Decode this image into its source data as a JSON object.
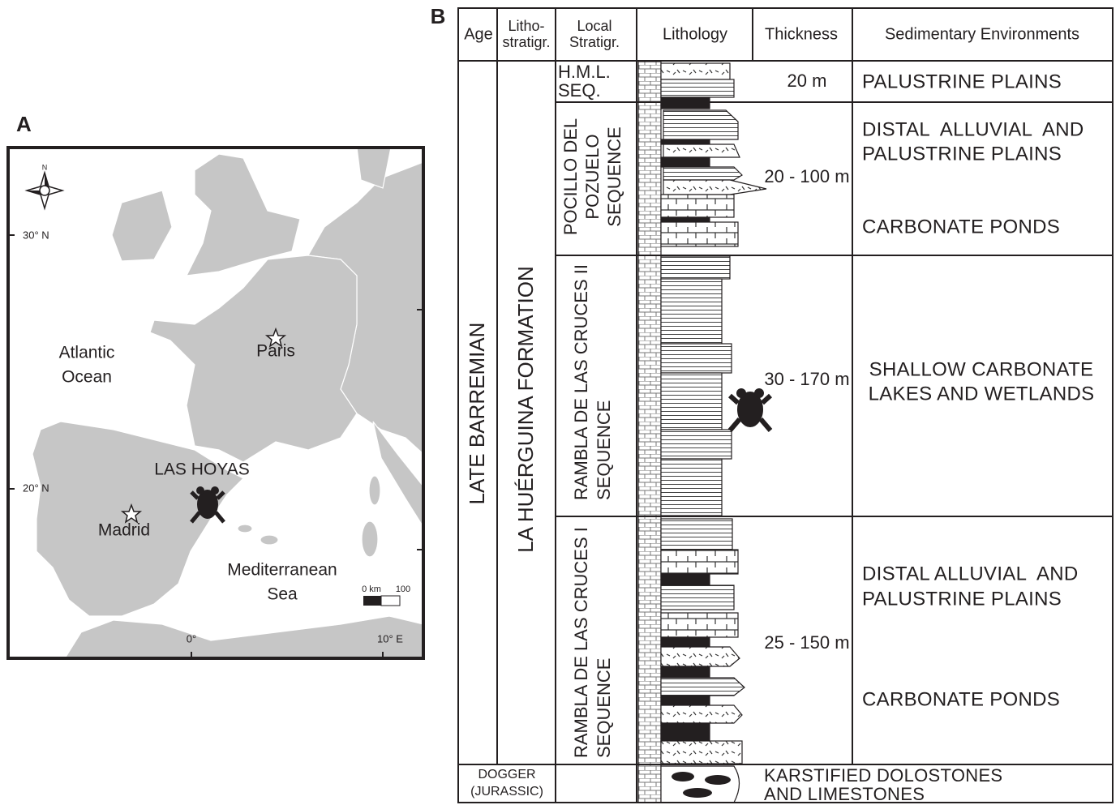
{
  "panel_a": {
    "label": "A",
    "compass": "N",
    "lat_labels": [
      "30° N",
      "20° N"
    ],
    "lon_labels": [
      "0°",
      "10° E"
    ],
    "places": {
      "atlantic": [
        "Atlantic",
        "Ocean"
      ],
      "paris": "Paris",
      "las_hoyas": "LAS HOYAS",
      "madrid": "Madrid",
      "mediterranean": [
        "Mediterranean",
        "Sea"
      ]
    },
    "scale": [
      "0 km",
      "100"
    ]
  },
  "panel_b": {
    "label": "B",
    "headers": [
      "Age",
      [
        "Litho-",
        "stratigr."
      ],
      [
        "Local",
        "Stratigr."
      ],
      "Lithology",
      "Thickness",
      "Sedimentary Environments"
    ],
    "age": "LATE BARREMIAN",
    "formation": "LA HUÉRGUINA FORMATION",
    "rows": [
      {
        "sequence": [
          "H.M.L.",
          "SEQ."
        ],
        "thickness": "20 m",
        "environments": [
          "PALUSTRINE PLAINS"
        ]
      },
      {
        "sequence": [
          "POCILLO DEL",
          "POZUELO",
          "SEQUENCE"
        ],
        "thickness": "20 - 100 m",
        "environments": [
          [
            "DISTAL  ALLUVIAL  AND",
            "PALUSTRINE PLAINS"
          ],
          "CARBONATE PONDS"
        ]
      },
      {
        "sequence": [
          "RAMBLA DE LAS CRUCES II",
          "SEQUENCE"
        ],
        "thickness": "30 - 170 m",
        "environments": [
          [
            "SHALLOW CARBONATE",
            "LAKES AND WETLANDS"
          ]
        ]
      },
      {
        "sequence": [
          "RAMBLA DE LAS CRUCES I",
          "SEQUENCE"
        ],
        "thickness": "25 - 150 m",
        "environments": [
          [
            "DISTAL ALLUVIAL  AND",
            "PALUSTRINE PLAINS"
          ],
          "CARBONATE PONDS"
        ]
      }
    ],
    "base": {
      "age": [
        "DOGGER",
        "(JURASSIC)"
      ],
      "description": [
        "KARSTIFIED DOLOSTONES",
        "AND LIMESTONES"
      ]
    }
  }
}
